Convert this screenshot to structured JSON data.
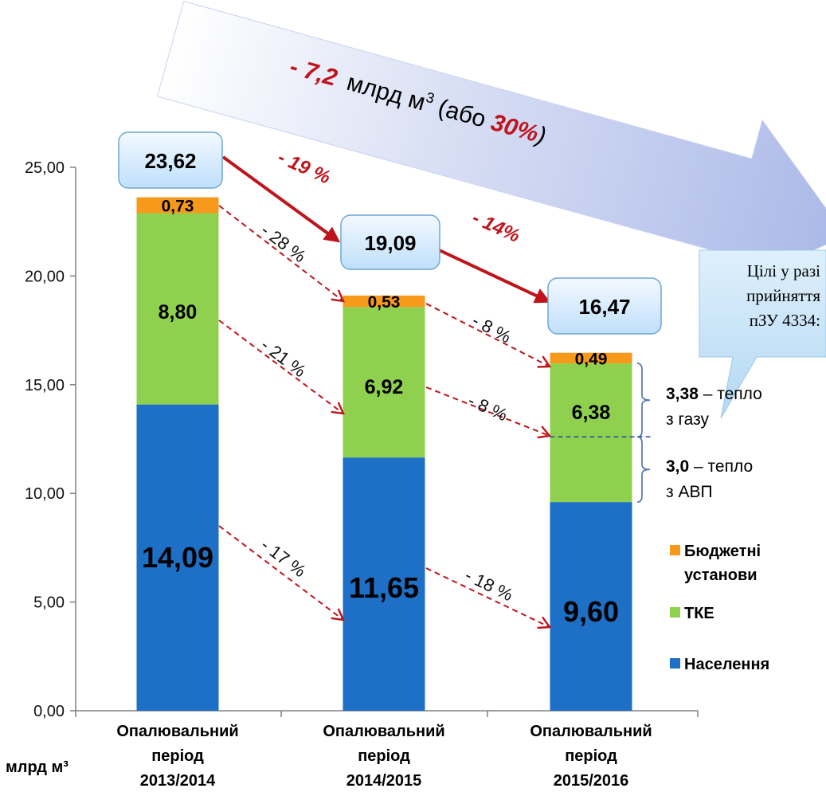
{
  "chart_data": {
    "type": "bar",
    "stacked": true,
    "categories": [
      [
        "Опалювальний",
        "період",
        "2013/2014"
      ],
      [
        "Опалювальний",
        "період",
        "2014/2015"
      ],
      [
        "Опалювальний",
        "період",
        "2015/2016"
      ]
    ],
    "series": [
      {
        "name": "Населення",
        "color": "#1e6fc6",
        "values": [
          14.09,
          11.65,
          9.6
        ],
        "labels": [
          "14,09",
          "11,65",
          "9,60"
        ]
      },
      {
        "name": "ТКЕ",
        "color": "#8fd14f",
        "values": [
          8.8,
          6.92,
          6.38
        ],
        "labels": [
          "8,80",
          "6,92",
          "6,38"
        ]
      },
      {
        "name": "Бюджетні установи",
        "color": "#f79a1c",
        "values": [
          0.73,
          0.53,
          0.49
        ],
        "labels": [
          "0,73",
          "0,53",
          "0,49"
        ]
      }
    ],
    "totals": [
      "23,62",
      "19,09",
      "16,47"
    ],
    "ylim": [
      0,
      25
    ],
    "yticks": [
      "0,00",
      "5,00",
      "10,00",
      "15,00",
      "20,00",
      "25,00"
    ],
    "ylabel": "млрд м³",
    "legend_position": "right",
    "legend": [
      "Бюджетні установи",
      "ТКЕ",
      "Населення"
    ],
    "changes": {
      "total": [
        "- 19 %",
        "- 14%"
      ],
      "budget": [
        "- 28 %",
        "- 8 %"
      ],
      "tke": [
        "- 21 %",
        "- 8 %"
      ],
      "population": [
        "- 17 %",
        "- 18 %"
      ]
    },
    "banner": {
      "value": "- 7,2",
      "unit": "млрд м",
      "sup": "3",
      "open": " (або ",
      "percent": "30%",
      "close": ")"
    },
    "callout": [
      "Цілі у разі",
      "прийняття",
      "пЗУ 4334:"
    ],
    "notes": [
      {
        "value": "3,38",
        "text": " – тепло",
        "line2": "з газу"
      },
      {
        "value": "3,0",
        "text": " – тепло",
        "line2": "з АВП"
      }
    ]
  }
}
